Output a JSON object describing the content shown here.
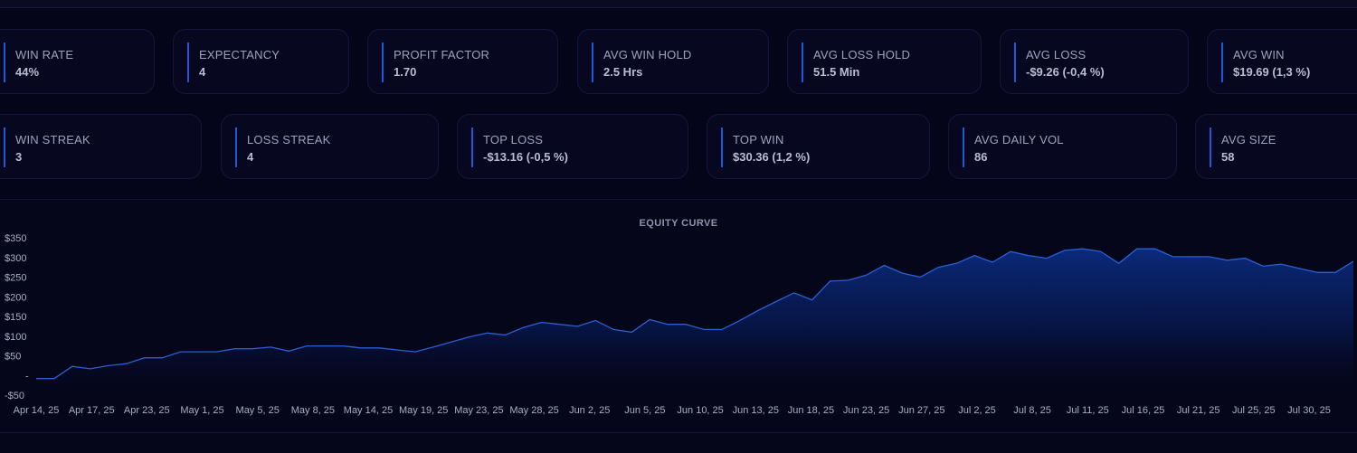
{
  "stats_row1": [
    {
      "label": "WIN RATE",
      "value": "44%"
    },
    {
      "label": "EXPECTANCY",
      "value": "4"
    },
    {
      "label": "PROFIT FACTOR",
      "value": "1.70"
    },
    {
      "label": "AVG WIN HOLD",
      "value": "2.5 Hrs"
    },
    {
      "label": "AVG LOSS HOLD",
      "value": "51.5 Min"
    },
    {
      "label": "AVG LOSS",
      "value": "-$9.26 (-0,4 %)"
    },
    {
      "label": "AVG WIN",
      "value": "$19.69 (1,3 %)"
    }
  ],
  "stats_row2": [
    {
      "label": "WIN STREAK",
      "value": "3"
    },
    {
      "label": "LOSS STREAK",
      "value": "4"
    },
    {
      "label": "TOP LOSS",
      "value": "-$13.16 (-0,5 %)"
    },
    {
      "label": "TOP WIN",
      "value": "$30.36 (1,2 %)"
    },
    {
      "label": "AVG DAILY VOL",
      "value": "86"
    },
    {
      "label": "AVG SIZE",
      "value": "58"
    }
  ],
  "colors": {
    "accent": "#1f5ad6",
    "line": "#2a5fd0",
    "fill_top": "#0a2a7a",
    "background": "#05051a"
  },
  "chart_data": {
    "type": "area",
    "title": "EQUITY CURVE",
    "xlabel": "",
    "ylabel": "",
    "ylim": [
      -50,
      350
    ],
    "y_ticks": [
      {
        "value": 350,
        "label": "$350"
      },
      {
        "value": 300,
        "label": "$300"
      },
      {
        "value": 250,
        "label": "$250"
      },
      {
        "value": 200,
        "label": "$200"
      },
      {
        "value": 150,
        "label": "$150"
      },
      {
        "value": 100,
        "label": "$100"
      },
      {
        "value": 50,
        "label": "$50"
      },
      {
        "value": 0,
        "label": "-"
      },
      {
        "value": -50,
        "label": "-$50"
      }
    ],
    "x_tick_labels": [
      "Apr 14, 25",
      "Apr 17, 25",
      "Apr 23, 25",
      "May 1, 25",
      "May 5, 25",
      "May 8, 25",
      "May 14, 25",
      "May 19, 25",
      "May 23, 25",
      "May 28, 25",
      "Jun 2, 25",
      "Jun 5, 25",
      "Jun 10, 25",
      "Jun 13, 25",
      "Jun 18, 25",
      "Jun 23, 25",
      "Jun 27, 25",
      "Jul 2, 25",
      "Jul 8, 25",
      "Jul 11, 25",
      "Jul 16, 25",
      "Jul 21, 25",
      "Jul 25, 25",
      "Jul 30, 25"
    ],
    "grid": false,
    "legend": "none",
    "series": [
      {
        "values": [
          -8,
          -8,
          23,
          17,
          25,
          30,
          45,
          45,
          60,
          60,
          60,
          68,
          68,
          72,
          62,
          75,
          75,
          75,
          70,
          70,
          65,
          60,
          72,
          85,
          98,
          108,
          103,
          122,
          135,
          130,
          125,
          140,
          117,
          110,
          142,
          130,
          130,
          117,
          117,
          140,
          165,
          188,
          210,
          192,
          240,
          242,
          255,
          280,
          260,
          250,
          275,
          285,
          305,
          288,
          315,
          305,
          298,
          318,
          322,
          315,
          285,
          322,
          322,
          302,
          302,
          302,
          293,
          298,
          278,
          283,
          272,
          262,
          262,
          290
        ]
      }
    ]
  }
}
